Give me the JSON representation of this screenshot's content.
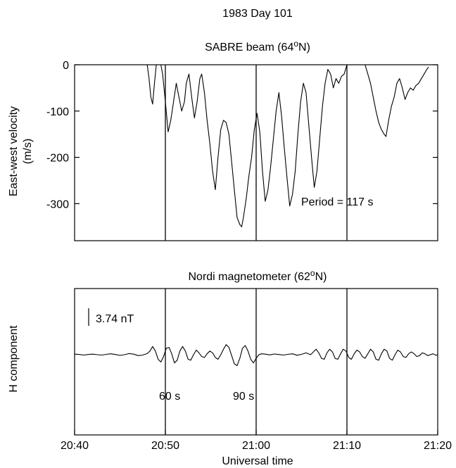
{
  "figure_title": "1983 Day 101",
  "chart_data": [
    {
      "type": "line",
      "title": "SABRE beam (64°N)",
      "title_text": "SABRE beam (64",
      "title_degree": "o",
      "title_suffix": "N)",
      "xlabel": "",
      "ylabel_line1": "East-west velocity",
      "ylabel_line2": "(m/s)",
      "x_unit": "minutes after 20:40 UT",
      "xlim": [
        0,
        40
      ],
      "ylim": [
        -380,
        0
      ],
      "y_ticks": [
        0,
        -100,
        -200,
        -300
      ],
      "y_tick_labels": [
        "0",
        "-100",
        "-200",
        "-300"
      ],
      "annotation": "Period = 117 s",
      "vertical_lines": [
        10,
        20,
        30
      ],
      "series": [
        {
          "segments": [
            [
              [
                8.0,
                0
              ],
              [
                8.2,
                -30
              ],
              [
                8.4,
                -70
              ],
              [
                8.6,
                -85
              ],
              [
                8.8,
                -40
              ],
              [
                9.0,
                0
              ]
            ],
            [
              [
                9.5,
                0
              ],
              [
                9.7,
                -20
              ],
              [
                10.0,
                -80
              ],
              [
                10.3,
                -145
              ],
              [
                10.6,
                -120
              ],
              [
                10.9,
                -80
              ],
              [
                11.2,
                -40
              ],
              [
                11.5,
                -70
              ],
              [
                11.8,
                -100
              ],
              [
                12.1,
                -80
              ],
              [
                12.3,
                -40
              ],
              [
                12.6,
                -20
              ],
              [
                12.9,
                -70
              ],
              [
                13.2,
                -115
              ],
              [
                13.5,
                -80
              ],
              [
                13.8,
                -30
              ],
              [
                14.0,
                -20
              ],
              [
                14.3,
                -60
              ],
              [
                14.6,
                -120
              ],
              [
                14.9,
                -170
              ],
              [
                15.2,
                -230
              ],
              [
                15.5,
                -270
              ],
              [
                15.8,
                -200
              ],
              [
                16.1,
                -140
              ],
              [
                16.4,
                -120
              ],
              [
                16.7,
                -125
              ],
              [
                17.0,
                -150
              ],
              [
                17.3,
                -210
              ],
              [
                17.6,
                -270
              ],
              [
                17.9,
                -330
              ],
              [
                18.2,
                -345
              ],
              [
                18.4,
                -350
              ],
              [
                18.6,
                -330
              ],
              [
                18.9,
                -290
              ],
              [
                19.2,
                -240
              ],
              [
                19.5,
                -200
              ],
              [
                19.8,
                -140
              ],
              [
                20.1,
                -105
              ],
              [
                20.4,
                -145
              ],
              [
                20.7,
                -230
              ],
              [
                21.0,
                -295
              ],
              [
                21.3,
                -270
              ],
              [
                21.6,
                -220
              ],
              [
                21.9,
                -160
              ],
              [
                22.2,
                -100
              ],
              [
                22.5,
                -60
              ],
              [
                22.8,
                -110
              ],
              [
                23.1,
                -180
              ],
              [
                23.4,
                -245
              ],
              [
                23.7,
                -305
              ],
              [
                24.0,
                -280
              ],
              [
                24.3,
                -230
              ],
              [
                24.6,
                -150
              ],
              [
                24.9,
                -80
              ],
              [
                25.2,
                -40
              ],
              [
                25.5,
                -60
              ],
              [
                25.8,
                -130
              ],
              [
                26.1,
                -200
              ],
              [
                26.4,
                -265
              ],
              [
                26.7,
                -230
              ],
              [
                27.0,
                -160
              ],
              [
                27.3,
                -90
              ],
              [
                27.6,
                -40
              ],
              [
                27.9,
                -10
              ],
              [
                28.2,
                -20
              ],
              [
                28.5,
                -50
              ],
              [
                28.8,
                -30
              ],
              [
                29.1,
                -40
              ],
              [
                29.4,
                -25
              ],
              [
                29.7,
                -20
              ],
              [
                30.0,
                0
              ]
            ],
            [
              [
                32.0,
                0
              ],
              [
                32.3,
                -20
              ],
              [
                32.6,
                -40
              ],
              [
                32.9,
                -70
              ],
              [
                33.2,
                -100
              ],
              [
                33.5,
                -125
              ],
              [
                33.8,
                -140
              ],
              [
                34.1,
                -150
              ],
              [
                34.3,
                -155
              ],
              [
                34.6,
                -120
              ],
              [
                34.9,
                -90
              ],
              [
                35.2,
                -70
              ],
              [
                35.5,
                -40
              ],
              [
                35.8,
                -30
              ],
              [
                36.1,
                -50
              ],
              [
                36.4,
                -75
              ],
              [
                36.7,
                -60
              ],
              [
                37.0,
                -50
              ],
              [
                37.3,
                -55
              ],
              [
                37.6,
                -45
              ],
              [
                37.9,
                -40
              ],
              [
                38.2,
                -30
              ],
              [
                38.5,
                -20
              ],
              [
                38.8,
                -10
              ],
              [
                39.0,
                -5
              ]
            ]
          ]
        }
      ]
    },
    {
      "type": "line",
      "title": "Nordi magnetometer (62°N)",
      "title_text": "Nordi magnetometer (62",
      "title_degree": "o",
      "title_suffix": "N)",
      "xlabel": "Universal time",
      "ylabel": "H component",
      "xlim": [
        0,
        40
      ],
      "x_ticks": [
        0,
        10,
        20,
        30,
        40
      ],
      "x_tick_labels": [
        "20:40",
        "20:50",
        "21:00",
        "21:10",
        "21:20"
      ],
      "scale_bar_label": "3.74 nT",
      "scale_bar_nT": 3.74,
      "ylim": [
        -16,
        16
      ],
      "annotations": [
        "60 s",
        "90 s"
      ],
      "vertical_lines": [
        10,
        20,
        30
      ],
      "series": [
        {
          "points": [
            [
              0.0,
              0.3
            ],
            [
              0.5,
              0.1
            ],
            [
              1.0,
              -0.2
            ],
            [
              1.5,
              0.1
            ],
            [
              2.0,
              0.3
            ],
            [
              2.5,
              0.0
            ],
            [
              3.0,
              -0.2
            ],
            [
              3.5,
              0.2
            ],
            [
              4.0,
              0.5
            ],
            [
              4.5,
              0.1
            ],
            [
              5.0,
              -0.4
            ],
            [
              5.5,
              0.0
            ],
            [
              6.0,
              0.6
            ],
            [
              6.5,
              0.3
            ],
            [
              7.0,
              -0.5
            ],
            [
              7.5,
              -0.2
            ],
            [
              8.0,
              0.6
            ],
            [
              8.3,
              2.0
            ],
            [
              8.6,
              4.5
            ],
            [
              8.9,
              2.0
            ],
            [
              9.2,
              -2.5
            ],
            [
              9.5,
              -4.0
            ],
            [
              9.8,
              -1.0
            ],
            [
              10.1,
              3.5
            ],
            [
              10.4,
              4.0
            ],
            [
              10.7,
              0.5
            ],
            [
              11.0,
              -4.5
            ],
            [
              11.3,
              -3.0
            ],
            [
              11.6,
              2.0
            ],
            [
              11.9,
              4.5
            ],
            [
              12.2,
              2.0
            ],
            [
              12.5,
              -2.5
            ],
            [
              12.8,
              -3.0
            ],
            [
              13.1,
              0.0
            ],
            [
              13.4,
              2.5
            ],
            [
              13.7,
              1.0
            ],
            [
              14.0,
              -1.0
            ],
            [
              14.3,
              -1.5
            ],
            [
              14.6,
              0.5
            ],
            [
              14.9,
              2.0
            ],
            [
              15.2,
              1.0
            ],
            [
              15.5,
              -1.5
            ],
            [
              15.8,
              -2.5
            ],
            [
              16.1,
              0.0
            ],
            [
              16.4,
              3.0
            ],
            [
              16.7,
              5.5
            ],
            [
              17.0,
              4.0
            ],
            [
              17.3,
              -0.5
            ],
            [
              17.6,
              -5.0
            ],
            [
              17.9,
              -6.0
            ],
            [
              18.2,
              -2.0
            ],
            [
              18.5,
              3.5
            ],
            [
              18.8,
              5.0
            ],
            [
              19.1,
              2.0
            ],
            [
              19.4,
              -2.5
            ],
            [
              19.7,
              -4.5
            ],
            [
              20.0,
              -2.0
            ],
            [
              20.3,
              0.0
            ],
            [
              20.6,
              0.5
            ],
            [
              21.0,
              0.3
            ],
            [
              21.5,
              -0.1
            ],
            [
              22.0,
              0.4
            ],
            [
              22.5,
              0.1
            ],
            [
              23.0,
              -0.2
            ],
            [
              23.5,
              0.2
            ],
            [
              24.0,
              0.5
            ],
            [
              24.5,
              -0.3
            ],
            [
              25.0,
              0.2
            ],
            [
              25.5,
              1.0
            ],
            [
              26.0,
              0.0
            ],
            [
              26.3,
              1.5
            ],
            [
              26.6,
              3.0
            ],
            [
              26.9,
              1.0
            ],
            [
              27.2,
              -2.0
            ],
            [
              27.5,
              -2.5
            ],
            [
              27.8,
              1.0
            ],
            [
              28.1,
              3.0
            ],
            [
              28.4,
              1.5
            ],
            [
              28.7,
              -2.0
            ],
            [
              29.0,
              -2.5
            ],
            [
              29.3,
              0.5
            ],
            [
              29.6,
              3.0
            ],
            [
              29.9,
              2.0
            ],
            [
              30.2,
              -1.5
            ],
            [
              30.5,
              -2.5
            ],
            [
              30.8,
              0.5
            ],
            [
              31.1,
              2.5
            ],
            [
              31.4,
              1.5
            ],
            [
              31.7,
              -1.0
            ],
            [
              32.0,
              -2.0
            ],
            [
              32.3,
              0.5
            ],
            [
              32.6,
              3.0
            ],
            [
              32.9,
              1.5
            ],
            [
              33.2,
              -2.5
            ],
            [
              33.5,
              -3.0
            ],
            [
              33.8,
              0.5
            ],
            [
              34.1,
              3.0
            ],
            [
              34.4,
              2.0
            ],
            [
              34.7,
              -2.0
            ],
            [
              35.0,
              -3.0
            ],
            [
              35.3,
              0.0
            ],
            [
              35.6,
              2.5
            ],
            [
              35.9,
              1.5
            ],
            [
              36.2,
              -1.0
            ],
            [
              36.5,
              -1.5
            ],
            [
              36.8,
              0.5
            ],
            [
              37.1,
              1.5
            ],
            [
              37.4,
              0.5
            ],
            [
              37.7,
              -1.0
            ],
            [
              38.0,
              -0.5
            ],
            [
              38.3,
              1.0
            ],
            [
              38.6,
              0.5
            ],
            [
              38.9,
              -0.5
            ],
            [
              39.2,
              0.0
            ],
            [
              39.5,
              0.5
            ],
            [
              39.8,
              -0.3
            ],
            [
              40.0,
              0.0
            ]
          ]
        }
      ]
    }
  ]
}
